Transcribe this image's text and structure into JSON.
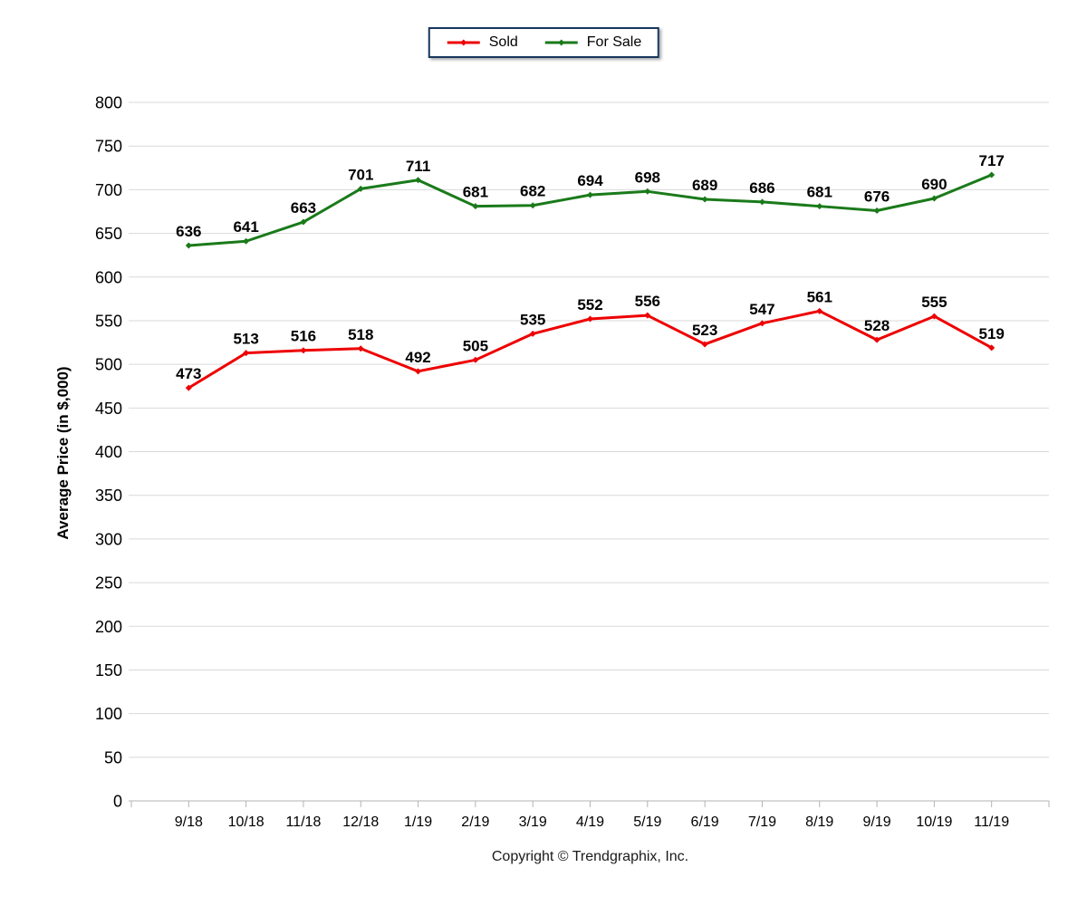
{
  "chart_data": {
    "type": "line",
    "title": "",
    "xlabel": "",
    "ylabel": "Average Price (in $,000)",
    "categories": [
      "9/18",
      "10/18",
      "11/18",
      "12/18",
      "1/19",
      "2/19",
      "3/19",
      "4/19",
      "5/19",
      "6/19",
      "7/19",
      "8/19",
      "9/19",
      "10/19",
      "11/19"
    ],
    "series": [
      {
        "name": "Sold",
        "color": "#ee0000",
        "values": [
          473,
          513,
          516,
          518,
          492,
          505,
          535,
          552,
          556,
          523,
          547,
          561,
          528,
          555,
          519
        ]
      },
      {
        "name": "For Sale",
        "color": "#1a7a1a",
        "values": [
          636,
          641,
          663,
          701,
          711,
          681,
          682,
          694,
          698,
          689,
          686,
          681,
          676,
          690,
          717
        ]
      }
    ],
    "ylim": [
      0,
      800
    ],
    "ytick_step": 50,
    "grid": true,
    "legend_position": "top",
    "data_labels": true
  },
  "styles": {
    "grid_color": "#d9d9d9",
    "axis_color": "#b3b3b3",
    "text_color": "#000000",
    "legend_border_color": "#16365c"
  },
  "footer": {
    "copyright": "Copyright © Trendgraphix, Inc."
  }
}
